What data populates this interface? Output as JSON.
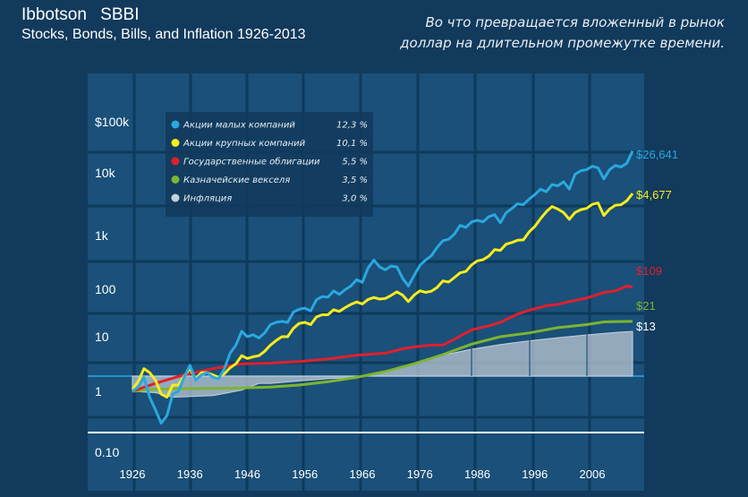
{
  "header": {
    "title": "Ibbotson   SBBI",
    "subtitle": "Stocks, Bonds, Bills, and Inflation 1926-2013",
    "note_line1": "Во что превращается вложенный в рынок",
    "note_line2": "доллар на длительном промежутке времени."
  },
  "colors": {
    "background": "#123a5c",
    "plot_bg": "#1a5079",
    "grid": "#0e3a5c",
    "small": "#2aa8e0",
    "large": "#f8ec1c",
    "bonds": "#e0202e",
    "bills": "#7db431",
    "inflation": "#c8d0da"
  },
  "chart_data": {
    "type": "line",
    "title": "Ibbotson   SBBI",
    "subtitle": "Stocks, Bonds, Bills, and Inflation 1926-2013",
    "y_scale": "log",
    "ylim": [
      0.1,
      100000
    ],
    "xlim": [
      1926,
      2013
    ],
    "y_ticks": [
      {
        "value": 100000,
        "label": "$100k"
      },
      {
        "value": 10000,
        "label": "10k"
      },
      {
        "value": 1000,
        "label": "1k"
      },
      {
        "value": 100,
        "label": "100"
      },
      {
        "value": 10,
        "label": "10"
      },
      {
        "value": 1,
        "label": "1"
      },
      {
        "value": 0.1,
        "label": "0.10"
      }
    ],
    "x_ticks": [
      "1926",
      "1936",
      "1946",
      "1956",
      "1966",
      "1976",
      "1986",
      "1996",
      "2006"
    ],
    "legend": {
      "position": "top-left"
    },
    "series": [
      {
        "name": "Акции малых компаний",
        "rate": "12,3 %",
        "end_label": "$26,641",
        "color_key": "small",
        "x": [
          1926,
          1927,
          1928,
          1929,
          1930,
          1931,
          1932,
          1933,
          1934,
          1935,
          1936,
          1937,
          1938,
          1939,
          1940,
          1941,
          1942,
          1943,
          1944,
          1945,
          1946,
          1947,
          1948,
          1949,
          1950,
          1951,
          1952,
          1953,
          1954,
          1955,
          1956,
          1957,
          1958,
          1959,
          1960,
          1961,
          1962,
          1963,
          1964,
          1965,
          1966,
          1967,
          1968,
          1969,
          1970,
          1971,
          1972,
          1973,
          1974,
          1975,
          1976,
          1977,
          1978,
          1979,
          1980,
          1981,
          1982,
          1983,
          1984,
          1985,
          1986,
          1987,
          1988,
          1989,
          1990,
          1991,
          1992,
          1993,
          1994,
          1995,
          1996,
          1997,
          1998,
          1999,
          2000,
          2001,
          2002,
          2003,
          2004,
          2005,
          2006,
          2007,
          2008,
          2009,
          2010,
          2011,
          2012,
          2013
        ],
        "y": [
          1.0,
          1.2,
          1.8,
          0.8,
          0.5,
          0.3,
          0.4,
          0.9,
          1.0,
          1.8,
          3.0,
          1.6,
          2.0,
          2.2,
          1.8,
          1.7,
          2.6,
          5.0,
          7.0,
          13.0,
          10.0,
          11.0,
          9.5,
          12.0,
          18.0,
          20.0,
          21.0,
          20.0,
          33.0,
          38.0,
          40.0,
          35.0,
          60.0,
          70.0,
          68.0,
          92.0,
          78.0,
          98.0,
          115.0,
          150.0,
          135.0,
          250.0,
          350.0,
          260.0,
          230.0,
          270.0,
          260.0,
          160.0,
          115.0,
          180.0,
          280.0,
          350.0,
          420.0,
          600.0,
          800.0,
          850.0,
          1050.0,
          1450.0,
          1350.0,
          1650.0,
          1750.0,
          1650.0,
          2000.0,
          2150.0,
          1600.0,
          2300.0,
          2700.0,
          3200.0,
          3100.0,
          3800.0,
          4500.0,
          5500.0,
          5000.0,
          6500.0,
          6200.0,
          7200.0,
          5500.0,
          9500.0,
          11000.0,
          11500.0,
          13500.0,
          12500.0,
          8000.0,
          11500.0,
          14000.0,
          13000.0,
          15500.0,
          26641.0
        ]
      },
      {
        "name": "Акции крупных компаний",
        "rate": "10,1 %",
        "end_label": "$4,677",
        "color_key": "large",
        "x": [
          1926,
          1927,
          1928,
          1929,
          1930,
          1931,
          1932,
          1933,
          1934,
          1935,
          1936,
          1937,
          1938,
          1939,
          1940,
          1941,
          1942,
          1943,
          1944,
          1945,
          1946,
          1947,
          1948,
          1949,
          1950,
          1951,
          1952,
          1953,
          1954,
          1955,
          1956,
          1957,
          1958,
          1959,
          1960,
          1961,
          1962,
          1963,
          1964,
          1965,
          1966,
          1967,
          1968,
          1969,
          1970,
          1971,
          1972,
          1973,
          1974,
          1975,
          1976,
          1977,
          1978,
          1979,
          1980,
          1981,
          1982,
          1983,
          1984,
          1985,
          1986,
          1987,
          1988,
          1989,
          1990,
          1991,
          1992,
          1993,
          1994,
          1995,
          1996,
          1997,
          1998,
          1999,
          2000,
          2001,
          2002,
          2003,
          2004,
          2005,
          2006,
          2007,
          2008,
          2009,
          2010,
          2011,
          2012,
          2013
        ],
        "y": [
          1.1,
          1.5,
          2.6,
          2.2,
          1.6,
          0.9,
          0.8,
          1.3,
          1.3,
          1.9,
          2.6,
          1.7,
          2.2,
          2.2,
          2.0,
          1.8,
          2.1,
          2.7,
          3.2,
          4.5,
          4.0,
          4.3,
          4.5,
          5.4,
          7.0,
          8.5,
          10.0,
          10.0,
          15.0,
          19.0,
          20.0,
          18.0,
          26.0,
          29.0,
          29.0,
          37.0,
          34.0,
          41.0,
          48.0,
          54.0,
          49.0,
          61.0,
          67.0,
          62.0,
          64.0,
          74.0,
          88.0,
          75.0,
          55.0,
          75.0,
          93.0,
          86.0,
          91.0,
          108.0,
          143.0,
          136.0,
          165.0,
          202.0,
          215.0,
          284.0,
          337.0,
          355.0,
          414.0,
          545.0,
          528.0,
          689.0,
          741.0,
          816.0,
          827.0,
          1137.0,
          1398.0,
          1865.0,
          2398.0,
          2903.0,
          2639.0,
          2325.0,
          1811.0,
          2331.0,
          2584.0,
          2711.0,
          3139.0,
          3311.0,
          2086.0,
          2638.0,
          3035.0,
          3099.0,
          3595.0,
          4677.0
        ]
      },
      {
        "name": "Государственные облигации",
        "rate": "5,5 %",
        "end_label": "$109",
        "color_key": "bonds",
        "x": [
          1926,
          1930,
          1935,
          1940,
          1945,
          1950,
          1955,
          1960,
          1965,
          1970,
          1973,
          1975,
          1978,
          1980,
          1982,
          1985,
          1988,
          1990,
          1993,
          1995,
          1998,
          2000,
          2002,
          2005,
          2008,
          2010,
          2012,
          2013
        ],
        "y": [
          1.0,
          1.4,
          2.0,
          2.6,
          3.2,
          3.3,
          3.5,
          3.9,
          4.6,
          5.0,
          6.0,
          6.5,
          7.0,
          7.0,
          9.0,
          14.0,
          17.0,
          20.0,
          30.0,
          36.0,
          45.0,
          48.0,
          55.0,
          65.0,
          85.0,
          92.0,
          115.0,
          109.0
        ]
      },
      {
        "name": "Казначейские векселя",
        "rate": "3,5 %",
        "end_label": "$21",
        "color_key": "bills",
        "x": [
          1926,
          1930,
          1935,
          1940,
          1945,
          1950,
          1955,
          1960,
          1965,
          1970,
          1975,
          1980,
          1985,
          1990,
          1995,
          2000,
          2005,
          2008,
          2010,
          2013
        ],
        "y": [
          1.0,
          1.1,
          1.12,
          1.13,
          1.15,
          1.2,
          1.3,
          1.5,
          1.8,
          2.3,
          3.2,
          4.7,
          7.3,
          10.0,
          12.0,
          15.5,
          18.0,
          20.5,
          20.8,
          21.0
        ]
      },
      {
        "name": "Инфляция",
        "rate": "3,0 %",
        "end_label": "$13",
        "color_key": "inflation",
        "x": [
          1926,
          1930,
          1933,
          1940,
          1945,
          1948,
          1950,
          1955,
          1960,
          1965,
          1970,
          1975,
          1980,
          1985,
          1990,
          1995,
          2000,
          2005,
          2010,
          2013
        ],
        "y": [
          1.0,
          0.95,
          0.8,
          0.85,
          1.05,
          1.4,
          1.4,
          1.55,
          1.7,
          1.8,
          2.2,
          3.1,
          4.6,
          5.9,
          7.2,
          8.4,
          9.6,
          10.9,
          12.3,
          13.0
        ]
      }
    ]
  }
}
